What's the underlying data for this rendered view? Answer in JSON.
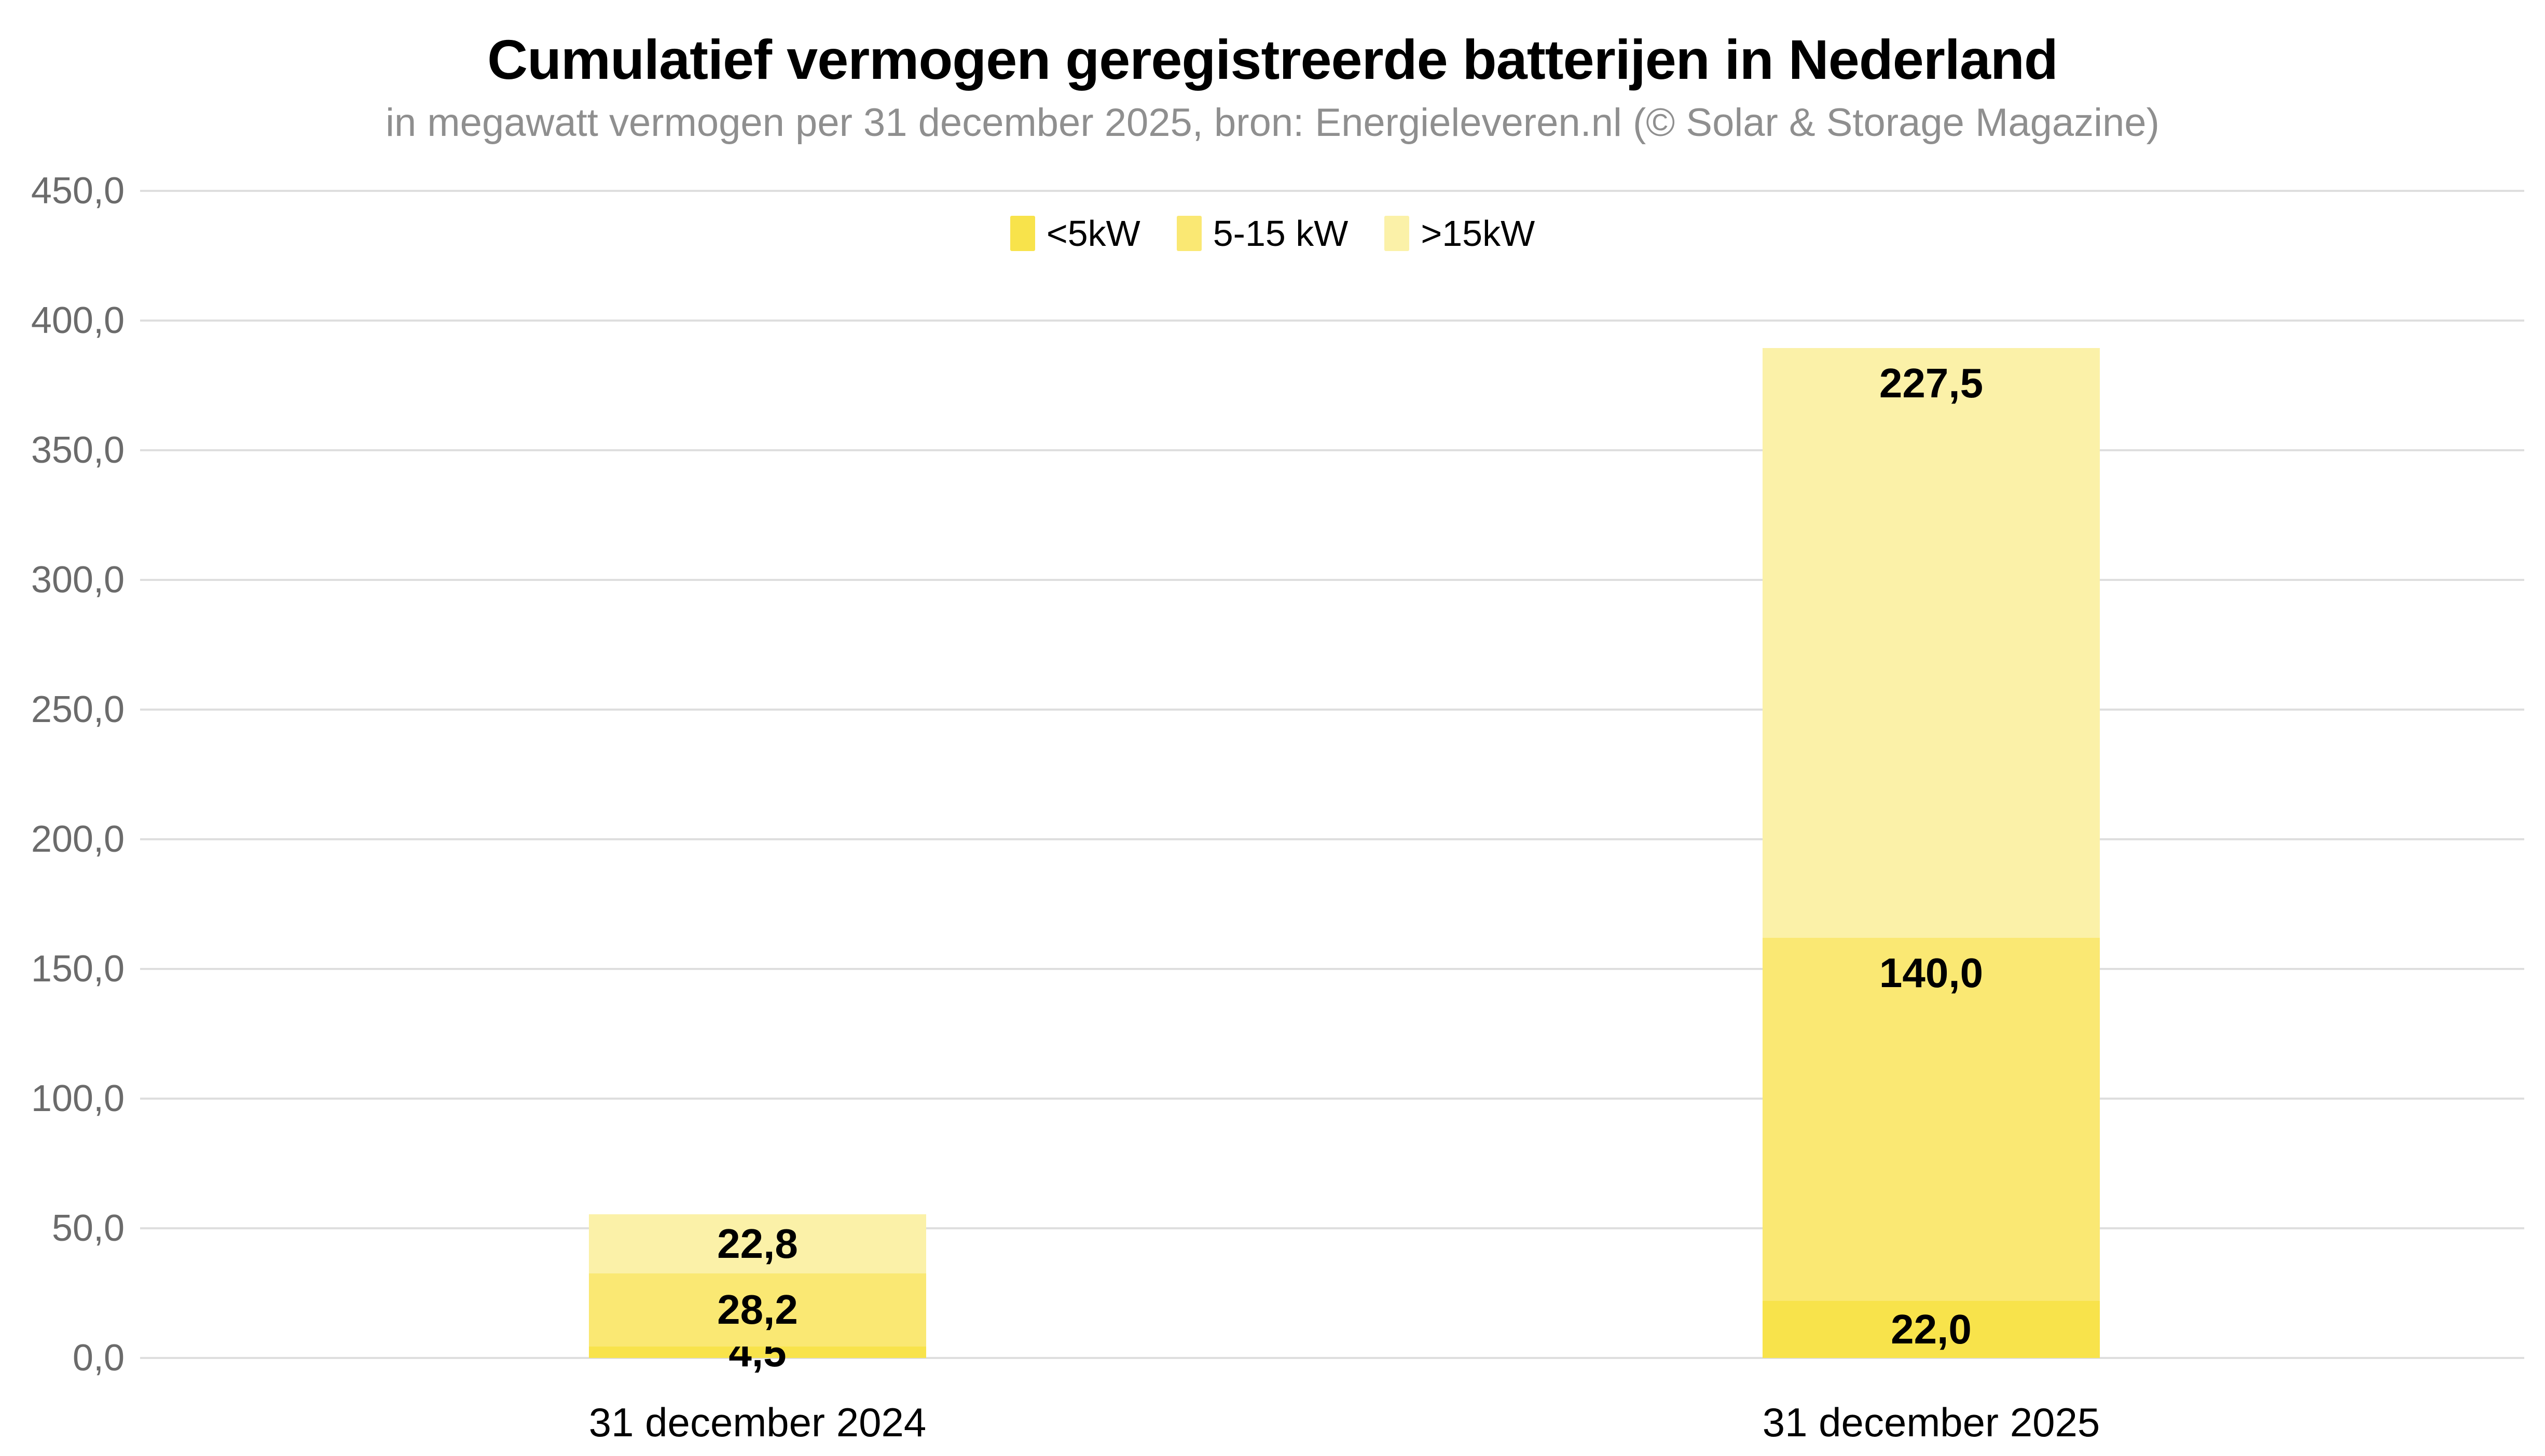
{
  "header": {
    "title": "Cumulatief vermogen geregistreerde batterijen in Nederland",
    "subtitle": "in megawatt vermogen per 31 december 2025, bron: Energieleveren.nl (© Solar & Storage Magazine)"
  },
  "chart_data": {
    "type": "bar",
    "stacked": true,
    "title": "Cumulatief vermogen geregistreerde batterijen in Nederland",
    "subtitle": "in megawatt vermogen per 31 december 2025, bron: Energieleveren.nl (© Solar & Storage Magazine)",
    "categories": [
      "31 december 2024",
      "31 december 2025"
    ],
    "series": [
      {
        "name": "<5kW",
        "color": "#F8E34B",
        "values": [
          4.5,
          22.0
        ],
        "value_labels": [
          "4,5",
          "22,0"
        ]
      },
      {
        "name": "5-15 kW",
        "color": "#FAE873",
        "values": [
          28.2,
          140.0
        ],
        "value_labels": [
          "28,2",
          "140,0"
        ]
      },
      {
        "name": ">15kW",
        "color": "#FBF1A8",
        "values": [
          22.8,
          227.5
        ],
        "value_labels": [
          "22,8",
          "227,5"
        ]
      }
    ],
    "totals": [
      55.5,
      389.5
    ],
    "ylabel": "",
    "xlabel": "",
    "ylim": [
      0,
      450
    ],
    "ytick_step": 50,
    "ytick_labels": [
      "0,0",
      "50,0",
      "100,0",
      "150,0",
      "200,0",
      "250,0",
      "300,0",
      "350,0",
      "400,0",
      "450,0"
    ],
    "grid": true,
    "legend_position": "top-center"
  },
  "colors": {
    "background": "#FFFFFF",
    "grid": "#DEDEDE",
    "axis_text": "#6B6B6B",
    "subtitle_text": "#8F8F8F",
    "title_text": "#000000",
    "value_label_text": "#000000"
  }
}
